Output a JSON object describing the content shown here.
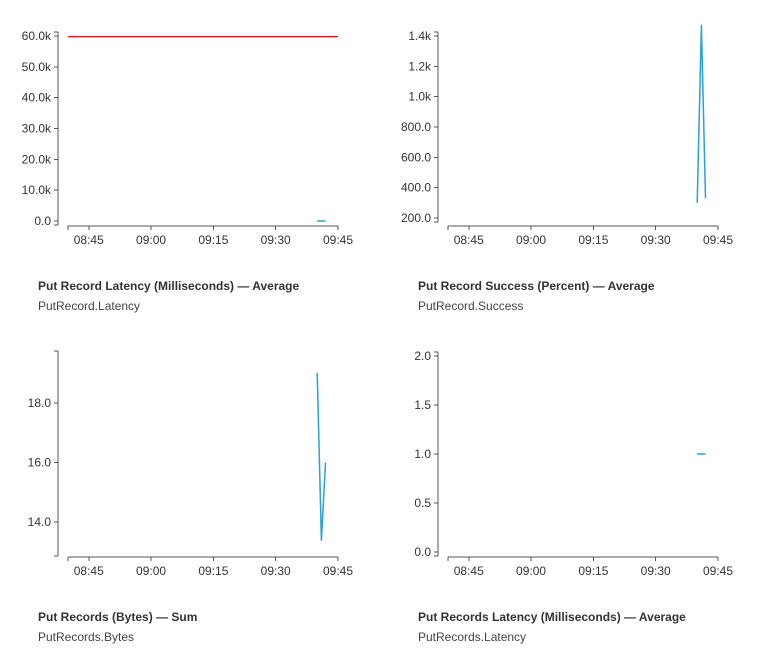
{
  "chart_data": [
    {
      "type": "line",
      "title": "Put Record Latency (Milliseconds) — Average",
      "subtitle": "PutRecord.Latency",
      "x_ticks": [
        "08:45",
        "09:00",
        "09:15",
        "09:30",
        "09:45"
      ],
      "xlim": [
        "08:40",
        "09:45"
      ],
      "y_ticks": [
        "0.0",
        "10.0k",
        "20.0k",
        "30.0k",
        "40.0k",
        "50.0k",
        "60.0k"
      ],
      "ylim": [
        0,
        60000
      ],
      "grid": false,
      "legend": "none",
      "series": [
        {
          "color": "#e02020",
          "points": [
            [
              "08:40",
              59800
            ],
            [
              "09:45",
              59800
            ]
          ]
        },
        {
          "color": "#2aa0d8",
          "points": [
            [
              "09:40",
              0
            ],
            [
              "09:42",
              0
            ]
          ]
        }
      ]
    },
    {
      "type": "line",
      "title": "Put Record Success (Percent) — Average",
      "subtitle": "PutRecord.Success",
      "x_ticks": [
        "08:45",
        "09:00",
        "09:15",
        "09:30",
        "09:45"
      ],
      "xlim": [
        "08:40",
        "09:45"
      ],
      "y_ticks": [
        "200.0",
        "400.0",
        "600.0",
        "800.0",
        "1.0k",
        "1.2k",
        "1.4k"
      ],
      "ylim": [
        200,
        1400
      ],
      "grid": false,
      "legend": "none",
      "series": [
        {
          "color": "#2aa0d8",
          "points": [
            [
              "09:40",
              300
            ],
            [
              "09:41",
              1470
            ],
            [
              "09:42",
              330
            ]
          ]
        }
      ]
    },
    {
      "type": "line",
      "title": "Put Records (Bytes) — Sum",
      "subtitle": "PutRecords.Bytes",
      "x_ticks": [
        "08:45",
        "09:00",
        "09:15",
        "09:30",
        "09:45"
      ],
      "xlim": [
        "08:40",
        "09:45"
      ],
      "y_ticks": [
        "14.0",
        "16.0",
        "18.0"
      ],
      "ylim": [
        13.0,
        19.6
      ],
      "grid": false,
      "legend": "none",
      "series": [
        {
          "color": "#2aa0d8",
          "points": [
            [
              "09:40",
              19.0
            ],
            [
              "09:41",
              13.4
            ],
            [
              "09:42",
              16.0
            ]
          ]
        }
      ]
    },
    {
      "type": "line",
      "title": "Put Records Latency (Milliseconds) — Average",
      "subtitle": "PutRecords.Latency",
      "x_ticks": [
        "08:45",
        "09:00",
        "09:15",
        "09:30",
        "09:45"
      ],
      "xlim": [
        "08:40",
        "09:45"
      ],
      "y_ticks": [
        "0.0",
        "0.5",
        "1.0",
        "1.5",
        "2.0"
      ],
      "ylim": [
        0,
        2.0
      ],
      "grid": false,
      "legend": "none",
      "series": [
        {
          "color": "#2aa0d8",
          "points": [
            [
              "09:40",
              1.0
            ],
            [
              "09:42",
              1.0
            ]
          ]
        }
      ]
    }
  ]
}
